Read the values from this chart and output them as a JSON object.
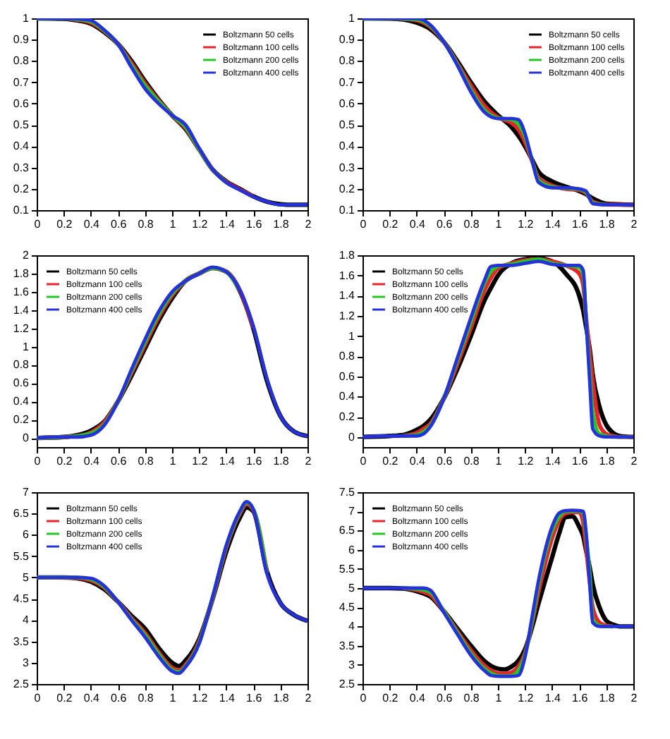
{
  "chart_data": [
    {
      "type": "line",
      "legend": "top right",
      "grid": false,
      "line_style": "solid",
      "xlim": [
        0,
        2
      ],
      "xticks": [
        0,
        0.2,
        0.4,
        0.6,
        0.8,
        1,
        1.2,
        1.4,
        1.6,
        1.8,
        2
      ],
      "ylim": [
        0.1,
        1
      ],
      "yticks": [
        0.1,
        0.2,
        0.3,
        0.4,
        0.5,
        0.6,
        0.7,
        0.8,
        0.9,
        1
      ],
      "x": [
        0,
        0.2,
        0.3,
        0.4,
        0.5,
        0.6,
        0.7,
        0.8,
        0.9,
        1.0,
        1.1,
        1.2,
        1.3,
        1.4,
        1.5,
        1.6,
        1.7,
        1.8,
        1.9,
        2.0
      ],
      "series": [
        {
          "name": "Boltzmann 50 cells",
          "color": "#000000",
          "values": [
            1,
            0.998,
            0.99,
            0.975,
            0.935,
            0.88,
            0.8,
            0.705,
            0.62,
            0.545,
            0.48,
            0.385,
            0.29,
            0.235,
            0.2,
            0.165,
            0.14,
            0.128,
            0.125,
            0.125
          ]
        },
        {
          "name": "Boltzmann 100 cells",
          "color": "#e8232b",
          "values": [
            1,
            1,
            0.993,
            0.98,
            0.94,
            0.88,
            0.79,
            0.695,
            0.615,
            0.545,
            0.485,
            0.385,
            0.29,
            0.232,
            0.197,
            0.164,
            null,
            null,
            null,
            null
          ]
        },
        {
          "name": "Boltzmann 200 cells",
          "color": "#22c822",
          "values": [
            1,
            1,
            0.995,
            0.985,
            0.942,
            0.88,
            0.78,
            0.685,
            0.61,
            0.545,
            0.49,
            0.385,
            0.29,
            0.23,
            null,
            null,
            null,
            null,
            null,
            null
          ]
        },
        {
          "name": "Boltzmann 400 cells",
          "color": "#2432d8",
          "values": [
            1,
            1,
            0.998,
            0.99,
            0.945,
            0.88,
            0.77,
            0.67,
            0.6,
            0.545,
            0.5,
            0.39,
            0.29,
            0.23,
            0.195,
            0.163,
            0.14,
            0.125,
            0.125,
            0.125
          ]
        }
      ]
    },
    {
      "type": "line",
      "legend": "top right",
      "grid": false,
      "line_style": "solid",
      "xlim": [
        0,
        2
      ],
      "xticks": [
        0,
        0.2,
        0.4,
        0.6,
        0.8,
        1,
        1.2,
        1.4,
        1.6,
        1.8,
        2
      ],
      "ylim": [
        0.1,
        1
      ],
      "yticks": [
        0.1,
        0.2,
        0.3,
        0.4,
        0.5,
        0.6,
        0.7,
        0.8,
        0.9,
        1
      ],
      "x": [
        0,
        0.2,
        0.3,
        0.4,
        0.5,
        0.6,
        0.7,
        0.8,
        0.9,
        1.0,
        1.1,
        1.15,
        1.2,
        1.25,
        1.3,
        1.4,
        1.5,
        1.6,
        1.65,
        1.7,
        1.8,
        2
      ],
      "series": [
        {
          "name": "Boltzmann 50 cells",
          "color": "#000000",
          "values": [
            1,
            0.999,
            0.995,
            0.98,
            0.95,
            0.89,
            0.8,
            0.7,
            0.61,
            0.545,
            0.49,
            0.45,
            0.4,
            0.34,
            0.28,
            0.235,
            0.21,
            0.19,
            0.175,
            0.155,
            0.13,
            0.125
          ]
        },
        {
          "name": "Boltzmann 100 cells",
          "color": "#e8232b",
          "values": [
            1,
            1,
            0.997,
            0.99,
            0.96,
            0.89,
            0.79,
            0.685,
            0.59,
            0.535,
            0.51,
            0.48,
            0.42,
            0.335,
            0.25,
            0.215,
            0.2,
            0.195,
            0.18,
            0.14,
            0.126,
            0.125
          ]
        },
        {
          "name": "Boltzmann 200 cells",
          "color": "#22c822",
          "values": [
            1,
            1,
            0.998,
            0.995,
            0.965,
            0.89,
            0.785,
            0.665,
            0.57,
            0.532,
            0.525,
            0.505,
            0.445,
            0.34,
            0.24,
            0.21,
            0.203,
            0.198,
            0.185,
            0.135,
            0.125,
            null
          ]
        },
        {
          "name": "Boltzmann 400 cells",
          "color": "#2432d8",
          "values": [
            1,
            1,
            1,
            1,
            0.97,
            0.89,
            0.78,
            0.655,
            0.56,
            0.53,
            0.53,
            0.525,
            0.46,
            0.34,
            0.23,
            0.205,
            0.205,
            0.2,
            0.19,
            0.13,
            0.125,
            0.125
          ]
        }
      ]
    },
    {
      "type": "line",
      "legend": "top left",
      "grid": false,
      "line_style": "solid",
      "xlim": [
        0,
        2
      ],
      "xticks": [
        0,
        0.2,
        0.4,
        0.6,
        0.8,
        1,
        1.2,
        1.4,
        1.6,
        1.8,
        2
      ],
      "ylim": [
        -0.1,
        2
      ],
      "yticks": [
        0,
        0.2,
        0.4,
        0.6,
        0.8,
        1,
        1.2,
        1.4,
        1.6,
        1.8,
        2
      ],
      "x": [
        0,
        0.2,
        0.3,
        0.4,
        0.5,
        0.6,
        0.7,
        0.8,
        0.9,
        1.0,
        1.1,
        1.2,
        1.3,
        1.4,
        1.5,
        1.6,
        1.7,
        1.8,
        1.9,
        2.0
      ],
      "series": [
        {
          "name": "Boltzmann 50 cells",
          "color": "#000000",
          "values": [
            0,
            0.01,
            0.03,
            0.08,
            0.18,
            0.4,
            0.68,
            0.98,
            1.28,
            1.53,
            1.72,
            1.8,
            1.86,
            1.82,
            1.61,
            1.2,
            0.63,
            0.24,
            0.07,
            0.02
          ]
        },
        {
          "name": "Boltzmann 100 cells",
          "color": "#e8232b",
          "values": [
            0,
            0.01,
            0.02,
            0.06,
            0.17,
            0.4,
            0.71,
            1.02,
            1.32,
            1.56,
            1.72,
            1.8,
            1.86,
            1.82,
            1.62,
            1.21,
            null,
            null,
            null,
            null
          ]
        },
        {
          "name": "Boltzmann 200 cells",
          "color": "#22c822",
          "values": [
            0,
            0.01,
            0.02,
            0.05,
            0.15,
            0.4,
            0.73,
            1.05,
            1.35,
            1.58,
            1.72,
            1.8,
            1.86,
            1.82,
            1.62,
            null,
            null,
            null,
            null,
            null
          ]
        },
        {
          "name": "Boltzmann 400 cells",
          "color": "#2432d8",
          "values": [
            0,
            0.01,
            0.01,
            0.03,
            0.14,
            0.4,
            0.75,
            1.08,
            1.38,
            1.6,
            1.72,
            1.8,
            1.87,
            1.82,
            1.62,
            1.22,
            0.65,
            0.24,
            0.07,
            0.02
          ]
        }
      ]
    },
    {
      "type": "line",
      "legend": "top left",
      "grid": false,
      "line_style": "solid",
      "xlim": [
        0,
        2
      ],
      "xticks": [
        0,
        0.2,
        0.4,
        0.6,
        0.8,
        1,
        1.2,
        1.4,
        1.6,
        1.8,
        2
      ],
      "ylim": [
        -0.1,
        1.8
      ],
      "yticks": [
        0,
        0.2,
        0.4,
        0.6,
        0.8,
        1,
        1.2,
        1.4,
        1.6,
        1.8
      ],
      "x": [
        0,
        0.2,
        0.3,
        0.4,
        0.45,
        0.5,
        0.6,
        0.7,
        0.8,
        0.9,
        0.95,
        1.0,
        1.1,
        1.2,
        1.3,
        1.4,
        1.5,
        1.6,
        1.63,
        1.65,
        1.68,
        1.7,
        1.75,
        1.8,
        1.85,
        1.9,
        2
      ],
      "series": [
        {
          "name": "Boltzmann 50 cells",
          "color": "#000000",
          "values": [
            0,
            0.01,
            0.02,
            0.07,
            0.11,
            0.17,
            0.38,
            0.67,
            1.0,
            1.35,
            1.48,
            1.6,
            1.72,
            1.76,
            1.77,
            1.74,
            1.62,
            1.4,
            1.25,
            1.1,
            0.85,
            0.62,
            0.3,
            0.12,
            0.04,
            0.01,
            0
          ]
        },
        {
          "name": "Boltzmann 100 cells",
          "color": "#e8232b",
          "values": [
            null,
            null,
            0.01,
            0.04,
            0.08,
            0.13,
            0.38,
            0.72,
            1.08,
            1.45,
            1.58,
            1.67,
            1.72,
            1.75,
            1.76,
            1.74,
            1.7,
            1.62,
            1.5,
            1.2,
            0.8,
            0.55,
            0.12,
            0.03,
            0.01,
            0,
            0
          ]
        },
        {
          "name": "Boltzmann 200 cells",
          "color": "#22c822",
          "values": [
            null,
            null,
            0.01,
            0.02,
            0.05,
            0.11,
            0.38,
            0.76,
            1.14,
            1.52,
            1.64,
            1.69,
            1.71,
            1.74,
            1.76,
            1.72,
            1.7,
            1.68,
            1.6,
            1.2,
            0.6,
            0.25,
            0.03,
            0.01,
            0,
            0,
            0
          ]
        },
        {
          "name": "Boltzmann 400 cells",
          "color": "#2432d8",
          "values": [
            0,
            0.01,
            0.01,
            0.01,
            0.03,
            0.1,
            0.38,
            0.78,
            1.18,
            1.55,
            1.69,
            1.7,
            1.7,
            1.72,
            1.74,
            1.71,
            1.7,
            1.7,
            1.65,
            1.2,
            0.5,
            0.08,
            0.01,
            0,
            0,
            0,
            0
          ]
        }
      ]
    },
    {
      "type": "line",
      "legend": "top left",
      "grid": false,
      "line_style": "solid",
      "xlim": [
        0,
        2
      ],
      "xticks": [
        0,
        0.2,
        0.4,
        0.6,
        0.8,
        1,
        1.2,
        1.4,
        1.6,
        1.8,
        2
      ],
      "ylim": [
        2.5,
        7
      ],
      "yticks": [
        2.5,
        3,
        3.5,
        4,
        4.5,
        5,
        5.5,
        6,
        6.5,
        7
      ],
      "x": [
        0,
        0.2,
        0.3,
        0.4,
        0.5,
        0.6,
        0.7,
        0.8,
        0.9,
        1.0,
        1.05,
        1.1,
        1.2,
        1.3,
        1.4,
        1.5,
        1.55,
        1.6,
        1.7,
        1.8,
        1.9,
        2.0
      ],
      "series": [
        {
          "name": "Boltzmann 50 cells",
          "color": "#000000",
          "values": [
            5,
            5,
            4.98,
            4.9,
            4.72,
            4.43,
            4.1,
            3.8,
            3.35,
            3.0,
            2.92,
            3.05,
            3.55,
            4.5,
            5.6,
            6.4,
            6.64,
            6.55,
            5.15,
            4.4,
            4.12,
            3.98
          ]
        },
        {
          "name": "Boltzmann 100 cells",
          "color": "#e8232b",
          "values": [
            5,
            null,
            4.99,
            4.93,
            4.76,
            4.43,
            4.05,
            3.7,
            3.25,
            2.88,
            2.82,
            2.95,
            3.5,
            4.52,
            5.7,
            6.5,
            6.72,
            6.58,
            5.12,
            null,
            null,
            null
          ]
        },
        {
          "name": "Boltzmann 200 cells",
          "color": "#22c822",
          "values": [
            5,
            5,
            5,
            4.96,
            4.78,
            4.43,
            4.02,
            3.65,
            3.2,
            2.83,
            2.78,
            2.92,
            3.47,
            4.54,
            5.73,
            6.53,
            6.76,
            6.6,
            5.1,
            null,
            null,
            null
          ]
        },
        {
          "name": "Boltzmann 400 cells",
          "color": "#2432d8",
          "values": [
            5,
            5,
            5,
            4.98,
            4.8,
            4.43,
            4.0,
            3.6,
            3.15,
            2.8,
            2.75,
            2.9,
            3.45,
            4.55,
            5.75,
            6.55,
            6.78,
            6.6,
            5.1,
            4.4,
            4.12,
            3.98
          ]
        }
      ]
    },
    {
      "type": "line",
      "legend": "top left",
      "grid": false,
      "line_style": "solid",
      "xlim": [
        0,
        2
      ],
      "xticks": [
        0,
        0.2,
        0.4,
        0.6,
        0.8,
        1,
        1.2,
        1.4,
        1.6,
        1.8,
        2
      ],
      "ylim": [
        2.5,
        7.5
      ],
      "yticks": [
        2.5,
        3,
        3.5,
        4,
        4.5,
        5,
        5.5,
        6,
        6.5,
        7,
        7.5
      ],
      "x": [
        0,
        0.2,
        0.3,
        0.4,
        0.45,
        0.5,
        0.6,
        0.7,
        0.8,
        0.9,
        0.95,
        1.0,
        1.05,
        1.1,
        1.15,
        1.2,
        1.25,
        1.3,
        1.4,
        1.45,
        1.5,
        1.55,
        1.6,
        1.63,
        1.65,
        1.68,
        1.7,
        1.75,
        1.8,
        1.85,
        1.9,
        2
      ],
      "series": [
        {
          "name": "Boltzmann 50 cells",
          "color": "#000000",
          "values": [
            5,
            5,
            4.99,
            4.92,
            4.86,
            4.78,
            4.4,
            3.95,
            3.5,
            3.1,
            2.97,
            2.9,
            2.88,
            2.95,
            3.1,
            3.4,
            3.95,
            4.6,
            5.8,
            6.4,
            6.85,
            6.87,
            6.6,
            6.35,
            6.0,
            5.5,
            5.1,
            4.5,
            4.15,
            4.05,
            4.0,
            4
          ]
        },
        {
          "name": "Boltzmann 100 cells",
          "color": "#e8232b",
          "values": [
            null,
            null,
            5,
            4.95,
            4.9,
            4.83,
            4.4,
            3.88,
            3.38,
            2.98,
            2.85,
            2.78,
            2.77,
            2.8,
            2.95,
            3.3,
            4.05,
            4.9,
            6.3,
            6.75,
            6.95,
            6.98,
            6.98,
            6.7,
            6.1,
            5.1,
            4.5,
            4.1,
            4.02,
            4,
            null,
            null
          ]
        },
        {
          "name": "Boltzmann 200 cells",
          "color": "#22c822",
          "values": [
            null,
            null,
            5,
            4.98,
            4.95,
            4.9,
            4.4,
            3.84,
            3.3,
            2.9,
            2.78,
            2.72,
            2.71,
            2.72,
            2.85,
            3.25,
            4.1,
            5.1,
            6.5,
            6.85,
            7.0,
            7.01,
            7.01,
            6.95,
            6.4,
            5.3,
            4.2,
            4.02,
            4,
            4,
            null,
            null
          ]
        },
        {
          "name": "Boltzmann 400 cells",
          "color": "#2432d8",
          "values": [
            5,
            5,
            5,
            5,
            5,
            4.95,
            4.37,
            3.8,
            3.25,
            2.85,
            2.72,
            2.7,
            2.7,
            2.7,
            2.72,
            3.2,
            4.2,
            5.2,
            6.6,
            6.95,
            7.02,
            7.03,
            7.02,
            7.0,
            6.5,
            5.0,
            4.1,
            4.0,
            4,
            4,
            4,
            4
          ]
        }
      ]
    }
  ]
}
